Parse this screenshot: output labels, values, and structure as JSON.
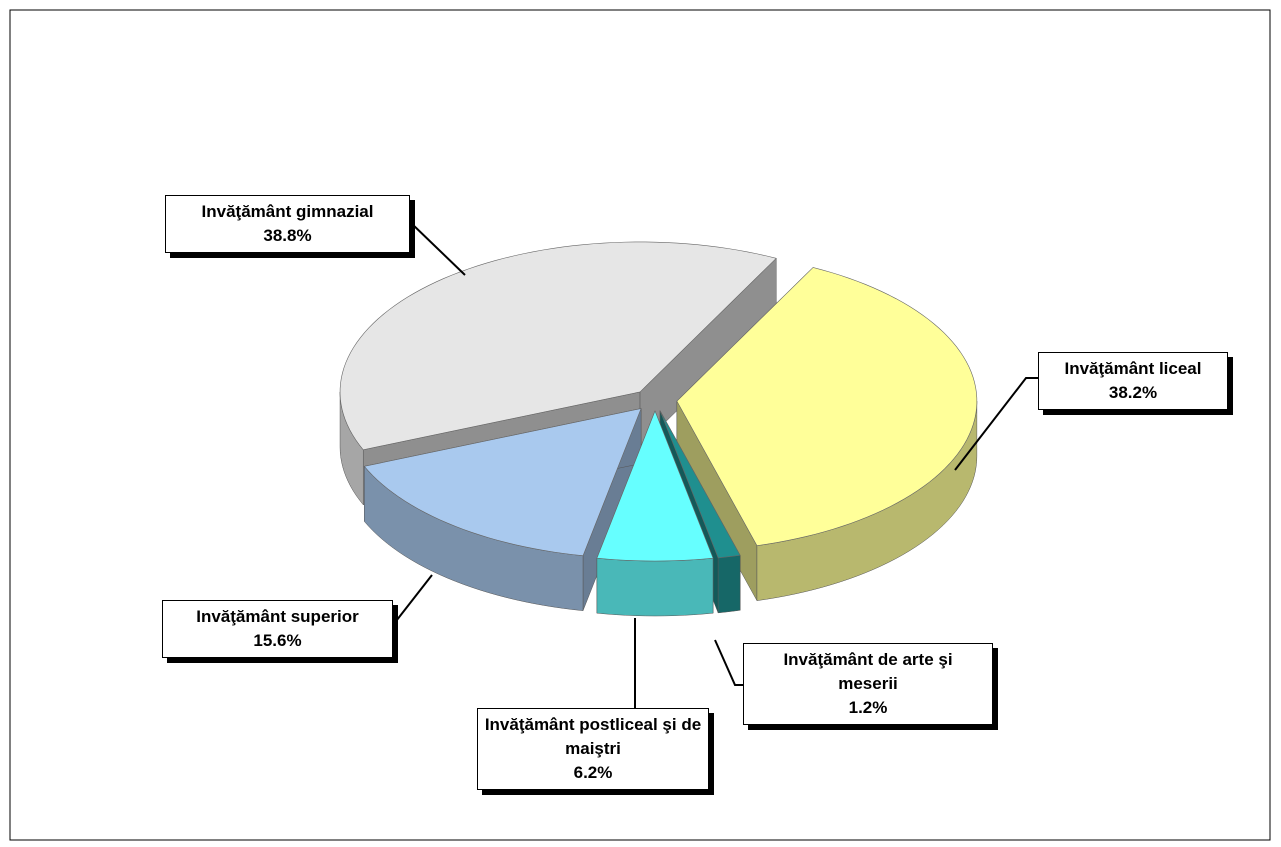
{
  "chart_data": {
    "type": "pie",
    "categories": [
      "Invăţământ liceal",
      "Invăţământ de arte şi meserii",
      "Invăţământ postliceal şi de maiştri",
      "Invăţământ superior",
      "Invăţământ gimnazial"
    ],
    "values": [
      38.2,
      1.2,
      6.2,
      15.6,
      38.8
    ],
    "value_labels": [
      "38.2%",
      "1.2%",
      "6.2%",
      "15.6%",
      "38.8%"
    ],
    "colors": [
      "#ffff99",
      "#1f8f8f",
      "#66ffff",
      "#a9c9ee",
      "#e6e6e6"
    ]
  }
}
